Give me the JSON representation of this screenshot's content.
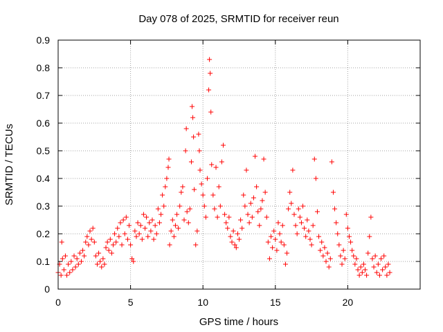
{
  "chart_data": {
    "type": "scatter",
    "title": "Day 078 of 2025, SRMTID for receiver reun",
    "xlabel": "GPS time / hours",
    "ylabel": "SRMTID / TECUs",
    "xlim": [
      0,
      25
    ],
    "ylim": [
      0,
      0.9
    ],
    "x_ticks": [
      0,
      5,
      10,
      15,
      20
    ],
    "x_tick_labels": [
      "0",
      "5",
      "10",
      "15",
      "20"
    ],
    "y_ticks": [
      0,
      0.1,
      0.2,
      0.3,
      0.4,
      0.5,
      0.6,
      0.7,
      0.8,
      0.9
    ],
    "y_tick_labels": [
      "0",
      "0.1",
      "0.2",
      "0.3",
      "0.4",
      "0.5",
      "0.6",
      "0.7",
      "0.8",
      "0.9"
    ],
    "grid": true,
    "marker": "+",
    "color": "#ff0000",
    "series": [
      {
        "name": "SRMTID",
        "points": [
          [
            0.0,
            0.06
          ],
          [
            0.1,
            0.09
          ],
          [
            0.2,
            0.05
          ],
          [
            0.25,
            0.17
          ],
          [
            0.3,
            0.11
          ],
          [
            0.4,
            0.07
          ],
          [
            0.5,
            0.12
          ],
          [
            0.6,
            0.05
          ],
          [
            0.7,
            0.09
          ],
          [
            0.8,
            0.06
          ],
          [
            0.9,
            0.1
          ],
          [
            1.0,
            0.07
          ],
          [
            1.1,
            0.12
          ],
          [
            1.2,
            0.08
          ],
          [
            1.3,
            0.11
          ],
          [
            1.4,
            0.09
          ],
          [
            1.5,
            0.13
          ],
          [
            1.6,
            0.1
          ],
          [
            1.7,
            0.14
          ],
          [
            1.8,
            0.12
          ],
          [
            1.9,
            0.17
          ],
          [
            2.0,
            0.19
          ],
          [
            2.1,
            0.16
          ],
          [
            2.2,
            0.21
          ],
          [
            2.3,
            0.18
          ],
          [
            2.4,
            0.22
          ],
          [
            2.5,
            0.17
          ],
          [
            2.6,
            0.12
          ],
          [
            2.7,
            0.09
          ],
          [
            2.8,
            0.13
          ],
          [
            2.9,
            0.1
          ],
          [
            3.0,
            0.08
          ],
          [
            3.1,
            0.11
          ],
          [
            3.2,
            0.09
          ],
          [
            3.3,
            0.15
          ],
          [
            3.4,
            0.17
          ],
          [
            3.5,
            0.14
          ],
          [
            3.6,
            0.18
          ],
          [
            3.7,
            0.13
          ],
          [
            3.8,
            0.16
          ],
          [
            3.9,
            0.2
          ],
          [
            4.0,
            0.17
          ],
          [
            4.1,
            0.22
          ],
          [
            4.2,
            0.19
          ],
          [
            4.3,
            0.24
          ],
          [
            4.4,
            0.16
          ],
          [
            4.5,
            0.25
          ],
          [
            4.6,
            0.2
          ],
          [
            4.7,
            0.26
          ],
          [
            4.8,
            0.18
          ],
          [
            4.9,
            0.23
          ],
          [
            5.0,
            0.16
          ],
          [
            5.1,
            0.11
          ],
          [
            5.2,
            0.1
          ],
          [
            5.3,
            0.21
          ],
          [
            5.4,
            0.19
          ],
          [
            5.5,
            0.24
          ],
          [
            5.6,
            0.2
          ],
          [
            5.7,
            0.23
          ],
          [
            5.8,
            0.18
          ],
          [
            5.9,
            0.27
          ],
          [
            6.0,
            0.22
          ],
          [
            6.1,
            0.26
          ],
          [
            6.2,
            0.19
          ],
          [
            6.3,
            0.24
          ],
          [
            6.4,
            0.21
          ],
          [
            6.5,
            0.25
          ],
          [
            6.6,
            0.18
          ],
          [
            6.7,
            0.23
          ],
          [
            6.8,
            0.2
          ],
          [
            6.9,
            0.29
          ],
          [
            7.0,
            0.24
          ],
          [
            7.1,
            0.27
          ],
          [
            7.2,
            0.34
          ],
          [
            7.3,
            0.3
          ],
          [
            7.4,
            0.37
          ],
          [
            7.5,
            0.4
          ],
          [
            7.6,
            0.44
          ],
          [
            7.65,
            0.47
          ],
          [
            7.7,
            0.16
          ],
          [
            7.8,
            0.21
          ],
          [
            7.9,
            0.25
          ],
          [
            8.0,
            0.19
          ],
          [
            8.1,
            0.23
          ],
          [
            8.2,
            0.27
          ],
          [
            8.3,
            0.22
          ],
          [
            8.4,
            0.3
          ],
          [
            8.5,
            0.35
          ],
          [
            8.6,
            0.37
          ],
          [
            8.7,
            0.25
          ],
          [
            8.8,
            0.5
          ],
          [
            8.85,
            0.58
          ],
          [
            8.9,
            0.28
          ],
          [
            9.0,
            0.24
          ],
          [
            9.1,
            0.29
          ],
          [
            9.2,
            0.46
          ],
          [
            9.25,
            0.66
          ],
          [
            9.3,
            0.62
          ],
          [
            9.35,
            0.55
          ],
          [
            9.4,
            0.36
          ],
          [
            9.5,
            0.16
          ],
          [
            9.6,
            0.21
          ],
          [
            9.7,
            0.56
          ],
          [
            9.75,
            0.5
          ],
          [
            9.8,
            0.43
          ],
          [
            9.9,
            0.38
          ],
          [
            10.0,
            0.34
          ],
          [
            10.1,
            0.3
          ],
          [
            10.2,
            0.26
          ],
          [
            10.3,
            0.4
          ],
          [
            10.4,
            0.72
          ],
          [
            10.45,
            0.83
          ],
          [
            10.5,
            0.78
          ],
          [
            10.55,
            0.64
          ],
          [
            10.6,
            0.45
          ],
          [
            10.7,
            0.34
          ],
          [
            10.8,
            0.29
          ],
          [
            10.9,
            0.44
          ],
          [
            11.0,
            0.26
          ],
          [
            11.1,
            0.37
          ],
          [
            11.2,
            0.3
          ],
          [
            11.3,
            0.46
          ],
          [
            11.4,
            0.52
          ],
          [
            11.5,
            0.27
          ],
          [
            11.6,
            0.24
          ],
          [
            11.7,
            0.22
          ],
          [
            11.8,
            0.26
          ],
          [
            11.9,
            0.19
          ],
          [
            12.0,
            0.17
          ],
          [
            12.1,
            0.21
          ],
          [
            12.2,
            0.16
          ],
          [
            12.3,
            0.15
          ],
          [
            12.4,
            0.2
          ],
          [
            12.5,
            0.18
          ],
          [
            12.6,
            0.25
          ],
          [
            12.7,
            0.22
          ],
          [
            12.8,
            0.34
          ],
          [
            12.9,
            0.3
          ],
          [
            13.0,
            0.43
          ],
          [
            13.1,
            0.27
          ],
          [
            13.2,
            0.24
          ],
          [
            13.3,
            0.31
          ],
          [
            13.4,
            0.26
          ],
          [
            13.5,
            0.33
          ],
          [
            13.6,
            0.48
          ],
          [
            13.7,
            0.37
          ],
          [
            13.8,
            0.28
          ],
          [
            13.9,
            0.23
          ],
          [
            14.0,
            0.29
          ],
          [
            14.1,
            0.32
          ],
          [
            14.2,
            0.47
          ],
          [
            14.3,
            0.35
          ],
          [
            14.4,
            0.26
          ],
          [
            14.5,
            0.17
          ],
          [
            14.6,
            0.11
          ],
          [
            14.7,
            0.19
          ],
          [
            14.8,
            0.15
          ],
          [
            14.9,
            0.21
          ],
          [
            15.0,
            0.18
          ],
          [
            15.1,
            0.14
          ],
          [
            15.2,
            0.24
          ],
          [
            15.3,
            0.2
          ],
          [
            15.4,
            0.17
          ],
          [
            15.5,
            0.23
          ],
          [
            15.6,
            0.16
          ],
          [
            15.7,
            0.09
          ],
          [
            15.8,
            0.13
          ],
          [
            15.9,
            0.29
          ],
          [
            16.0,
            0.35
          ],
          [
            16.1,
            0.31
          ],
          [
            16.2,
            0.43
          ],
          [
            16.3,
            0.27
          ],
          [
            16.4,
            0.23
          ],
          [
            16.5,
            0.2
          ],
          [
            16.6,
            0.29
          ],
          [
            16.7,
            0.26
          ],
          [
            16.8,
            0.24
          ],
          [
            16.9,
            0.3
          ],
          [
            17.0,
            0.22
          ],
          [
            17.1,
            0.19
          ],
          [
            17.2,
            0.25
          ],
          [
            17.3,
            0.21
          ],
          [
            17.4,
            0.18
          ],
          [
            17.5,
            0.16
          ],
          [
            17.6,
            0.23
          ],
          [
            17.7,
            0.47
          ],
          [
            17.8,
            0.4
          ],
          [
            17.9,
            0.28
          ],
          [
            18.0,
            0.19
          ],
          [
            18.1,
            0.14
          ],
          [
            18.2,
            0.17
          ],
          [
            18.3,
            0.12
          ],
          [
            18.4,
            0.15
          ],
          [
            18.5,
            0.1
          ],
          [
            18.6,
            0.13
          ],
          [
            18.7,
            0.08
          ],
          [
            18.8,
            0.11
          ],
          [
            18.9,
            0.46
          ],
          [
            19.0,
            0.35
          ],
          [
            19.1,
            0.29
          ],
          [
            19.2,
            0.24
          ],
          [
            19.3,
            0.2
          ],
          [
            19.4,
            0.16
          ],
          [
            19.5,
            0.12
          ],
          [
            19.6,
            0.09
          ],
          [
            19.7,
            0.14
          ],
          [
            19.8,
            0.11
          ],
          [
            19.9,
            0.27
          ],
          [
            20.0,
            0.22
          ],
          [
            20.1,
            0.19
          ],
          [
            20.2,
            0.17
          ],
          [
            20.3,
            0.14
          ],
          [
            20.4,
            0.12
          ],
          [
            20.5,
            0.09
          ],
          [
            20.6,
            0.11
          ],
          [
            20.7,
            0.07
          ],
          [
            20.8,
            0.05
          ],
          [
            20.9,
            0.08
          ],
          [
            21.0,
            0.06
          ],
          [
            21.1,
            0.09
          ],
          [
            21.2,
            0.07
          ],
          [
            21.3,
            0.05
          ],
          [
            21.4,
            0.13
          ],
          [
            21.5,
            0.19
          ],
          [
            21.6,
            0.26
          ],
          [
            21.7,
            0.11
          ],
          [
            21.8,
            0.08
          ],
          [
            21.9,
            0.12
          ],
          [
            22.0,
            0.06
          ],
          [
            22.1,
            0.09
          ],
          [
            22.2,
            0.05
          ],
          [
            22.3,
            0.11
          ],
          [
            22.4,
            0.07
          ],
          [
            22.5,
            0.12
          ],
          [
            22.6,
            0.08
          ],
          [
            22.7,
            0.05
          ],
          [
            22.8,
            0.09
          ],
          [
            22.9,
            0.06
          ]
        ]
      }
    ]
  }
}
